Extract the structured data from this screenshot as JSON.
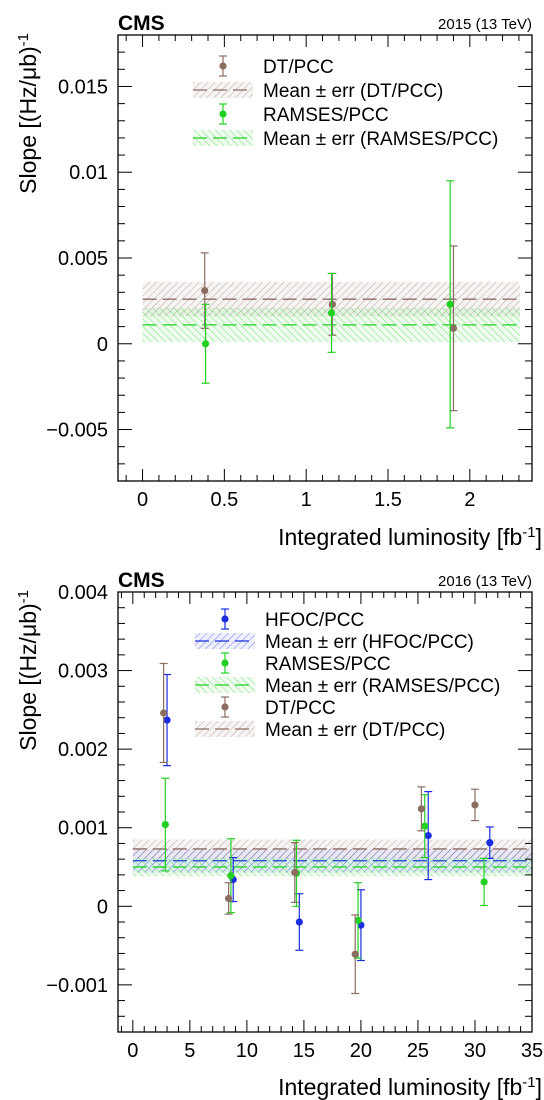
{
  "chart_data": [
    {
      "type": "scatter",
      "experiment": "CMS",
      "run_label": "2015 (13 TeV)",
      "xlabel": "Integrated luminosity [fb",
      "xlabel_sup": "-1",
      "ylabel": "Slope [(Hz/μb)",
      "ylabel_sup": "-1",
      "xlim": [
        -0.15,
        2.38
      ],
      "ylim": [
        -0.008,
        0.018
      ],
      "xticks": [
        {
          "v": 0,
          "label": "0"
        },
        {
          "v": 0.5,
          "label": "0.5"
        },
        {
          "v": 1,
          "label": "1"
        },
        {
          "v": 1.5,
          "label": "1.5"
        },
        {
          "v": 2,
          "label": "2"
        }
      ],
      "yticks": [
        {
          "v": -0.005,
          "label": "−0.005"
        },
        {
          "v": 0,
          "label": "0"
        },
        {
          "v": 0.005,
          "label": "0.005"
        },
        {
          "v": 0.01,
          "label": "0.01"
        },
        {
          "v": 0.015,
          "label": "0.015"
        }
      ],
      "colors": {
        "dt": "#8c6d62",
        "ramses": "#22d022"
      },
      "series": [
        {
          "name": "DT/PCC",
          "color": "#8c6d62",
          "points": [
            {
              "x": 0.38,
              "y": 0.0031,
              "err": 0.0022
            },
            {
              "x": 1.16,
              "y": 0.0023,
              "err": 0.0018
            },
            {
              "x": 1.9,
              "y": 0.0009,
              "err": 0.0048
            }
          ]
        },
        {
          "name": "RAMSES/PCC",
          "color": "#22d022",
          "points": [
            {
              "x": 0.385,
              "y": 0.0,
              "err": 0.0023
            },
            {
              "x": 1.155,
              "y": 0.0018,
              "err": 0.0023
            },
            {
              "x": 1.88,
              "y": 0.0023,
              "err": 0.0072
            }
          ]
        }
      ],
      "bands": [
        {
          "name": "Mean ± err (DT/PCC)",
          "color": "#8c6d62",
          "mean": 0.0026,
          "err": 0.001
        },
        {
          "name": "Mean ± err (RAMSES/PCC)",
          "color": "#22d022",
          "mean": 0.0011,
          "err": 0.001
        }
      ],
      "legend": [
        {
          "label": "DT/PCC",
          "kind": "point",
          "color": "#8c6d62"
        },
        {
          "label": "Mean ± err (DT/PCC)",
          "kind": "band",
          "color": "#8c6d62"
        },
        {
          "label": "RAMSES/PCC",
          "kind": "point",
          "color": "#22d022"
        },
        {
          "label": "Mean ± err (RAMSES/PCC)",
          "kind": "band",
          "color": "#22d022"
        }
      ]
    },
    {
      "type": "scatter",
      "experiment": "CMS",
      "run_label": "2016 (13 TeV)",
      "xlabel": "Integrated luminosity [fb",
      "xlabel_sup": "-1",
      "ylabel": "Slope [(Hz/μb)",
      "ylabel_sup": "-1",
      "xlim": [
        -1.3,
        35
      ],
      "ylim": [
        -0.0016,
        0.004
      ],
      "xticks": [
        {
          "v": 0,
          "label": "0"
        },
        {
          "v": 5,
          "label": "5"
        },
        {
          "v": 10,
          "label": "10"
        },
        {
          "v": 15,
          "label": "15"
        },
        {
          "v": 20,
          "label": "20"
        },
        {
          "v": 25,
          "label": "25"
        },
        {
          "v": 30,
          "label": "30"
        },
        {
          "v": 35,
          "label": "35"
        }
      ],
      "yticks": [
        {
          "v": -0.001,
          "label": "−0.001"
        },
        {
          "v": 0,
          "label": "0"
        },
        {
          "v": 0.001,
          "label": "0.001"
        },
        {
          "v": 0.002,
          "label": "0.002"
        },
        {
          "v": 0.003,
          "label": "0.003"
        },
        {
          "v": 0.004,
          "label": "0.004"
        }
      ],
      "colors": {
        "hfoc": "#1a2ee0",
        "ramses": "#22d022",
        "dt": "#8c6d62"
      },
      "series": [
        {
          "name": "HFOC/PCC",
          "color": "#1a2ee0",
          "points": [
            {
              "x": 3.0,
              "y": 0.00237,
              "err": 0.00058
            },
            {
              "x": 8.8,
              "y": 0.00034,
              "err": 0.00028
            },
            {
              "x": 14.6,
              "y": -0.0002,
              "err": 0.00036
            },
            {
              "x": 20.0,
              "y": -0.00024,
              "err": 0.00045
            },
            {
              "x": 25.9,
              "y": 0.0009,
              "err": 0.00056
            },
            {
              "x": 31.3,
              "y": 0.00081,
              "err": 0.0002
            }
          ]
        },
        {
          "name": "RAMSES/PCC",
          "color": "#22d022",
          "points": [
            {
              "x": 2.85,
              "y": 0.00104,
              "err": 0.00059
            },
            {
              "x": 8.6,
              "y": 0.00039,
              "err": 0.00047
            },
            {
              "x": 14.35,
              "y": 0.00042,
              "err": 0.00042
            },
            {
              "x": 19.75,
              "y": -0.00018,
              "err": 0.00048
            },
            {
              "x": 25.6,
              "y": 0.00102,
              "err": 0.0004
            },
            {
              "x": 30.8,
              "y": 0.00031,
              "err": 0.0003
            }
          ]
        },
        {
          "name": "DT/PCC",
          "color": "#8c6d62",
          "points": [
            {
              "x": 2.7,
              "y": 0.00246,
              "err": 0.00063
            },
            {
              "x": 8.4,
              "y": 0.0001,
              "err": 0.0002
            },
            {
              "x": 14.2,
              "y": 0.00043,
              "err": 0.00038
            },
            {
              "x": 19.5,
              "y": -0.00061,
              "err": 0.0005
            },
            {
              "x": 25.3,
              "y": 0.00124,
              "err": 0.00028
            },
            {
              "x": 30.0,
              "y": 0.00129,
              "err": 0.0002
            }
          ]
        }
      ],
      "bands": [
        {
          "name": "Mean ± err (HFOC/PCC)",
          "color": "#1a2ee0",
          "mean": 0.00058,
          "err": 0.00015
        },
        {
          "name": "Mean ± err (RAMSES/PCC)",
          "color": "#22d022",
          "mean": 0.0005,
          "err": 0.00012
        },
        {
          "name": "Mean ± err (DT/PCC)",
          "color": "#8c6d62",
          "mean": 0.00073,
          "err": 0.00012
        }
      ],
      "legend": [
        {
          "label": "HFOC/PCC",
          "kind": "point",
          "color": "#1a2ee0"
        },
        {
          "label": "Mean ± err (HFOC/PCC)",
          "kind": "band",
          "color": "#1a2ee0"
        },
        {
          "label": "RAMSES/PCC",
          "kind": "point",
          "color": "#22d022"
        },
        {
          "label": "Mean ± err (RAMSES/PCC)",
          "kind": "band",
          "color": "#22d022"
        },
        {
          "label": "DT/PCC",
          "kind": "point",
          "color": "#8c6d62"
        },
        {
          "label": "Mean ± err (DT/PCC)",
          "kind": "band",
          "color": "#8c6d62"
        }
      ]
    }
  ]
}
